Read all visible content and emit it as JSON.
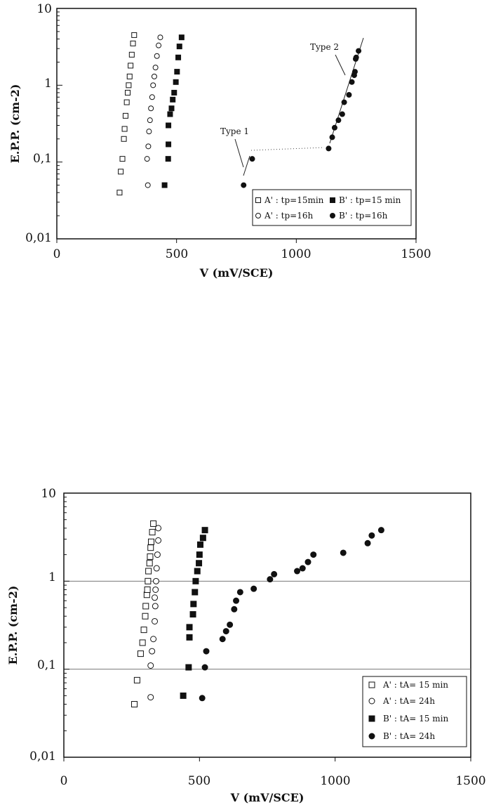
{
  "chart_data": [
    {
      "type": "scatter",
      "title": "",
      "xlabel": "V (mV/SCE)",
      "ylabel": "E.P.P. (cm-2)",
      "xlim": [
        0,
        1500
      ],
      "ylim": [
        0.01,
        10
      ],
      "yscale": "log",
      "xticks": [
        "0",
        "500",
        "1000",
        "1500"
      ],
      "yticks": [
        "0,01",
        "0,1",
        "1",
        "10"
      ],
      "grid": false,
      "legend_position": "bottom-right",
      "series": [
        {
          "name": "A' : tp=15min",
          "marker": "open-square",
          "x": [
            262,
            267,
            274,
            280,
            283,
            287,
            292,
            296,
            300,
            304,
            308,
            313,
            318,
            323
          ],
          "y": [
            0.04,
            0.075,
            0.11,
            0.2,
            0.27,
            0.4,
            0.6,
            0.8,
            1.0,
            1.3,
            1.8,
            2.5,
            3.5,
            4.5
          ]
        },
        {
          "name": "A' : tp=16h",
          "marker": "open-circle",
          "x": [
            380,
            377,
            382,
            385,
            389,
            393,
            398,
            402,
            407,
            412,
            418,
            425,
            432
          ],
          "y": [
            0.05,
            0.11,
            0.16,
            0.25,
            0.35,
            0.5,
            0.7,
            1.0,
            1.3,
            1.7,
            2.4,
            3.3,
            4.2
          ]
        },
        {
          "name": "B' : tp=15 min",
          "marker": "filled-square",
          "x": [
            450,
            465,
            466,
            466,
            473,
            479,
            484,
            490,
            497,
            502,
            507,
            512,
            521
          ],
          "y": [
            0.05,
            0.11,
            0.17,
            0.3,
            0.42,
            0.5,
            0.65,
            0.8,
            1.1,
            1.5,
            2.3,
            3.2,
            4.2
          ]
        },
        {
          "name": "B' : tp=16h",
          "marker": "filled-circle",
          "x": [
            780,
            816,
            1135,
            1150,
            1160,
            1176,
            1192,
            1200,
            1220,
            1232,
            1242,
            1245,
            1248,
            1250,
            1260
          ],
          "y": [
            0.05,
            0.11,
            0.15,
            0.21,
            0.28,
            0.35,
            0.42,
            0.6,
            0.75,
            1.1,
            1.35,
            1.5,
            2.2,
            2.3,
            2.8
          ]
        }
      ],
      "annotations": [
        {
          "text": "Type 1",
          "x": 745,
          "y": 0.17
        },
        {
          "text": "Type 2",
          "x": 1130,
          "y": 2.8
        }
      ]
    },
    {
      "type": "scatter",
      "title": "",
      "xlabel": "V (mV/SCE)",
      "ylabel": "E.P.P. (cm-2)",
      "xlim": [
        0,
        1500
      ],
      "ylim": [
        0.01,
        10
      ],
      "yscale": "log",
      "xticks": [
        "0",
        "500",
        "1000",
        "1500"
      ],
      "yticks": [
        "0,01",
        "0,1",
        "1",
        "10"
      ],
      "grid": true,
      "legend_position": "bottom-right",
      "series": [
        {
          "name": "A' : tA= 15 min",
          "marker": "open-square",
          "x": [
            260,
            270,
            283,
            290,
            295,
            300,
            302,
            306,
            308,
            310,
            312,
            316,
            318,
            320,
            322,
            326,
            330
          ],
          "y": [
            0.04,
            0.075,
            0.15,
            0.2,
            0.28,
            0.4,
            0.52,
            0.7,
            0.8,
            1.0,
            1.3,
            1.6,
            1.9,
            2.4,
            2.8,
            3.6,
            4.5
          ]
        },
        {
          "name": "A' : tA= 24h",
          "marker": "open-circle",
          "x": [
            320,
            320,
            325,
            330,
            335,
            337,
            335,
            338,
            340,
            342,
            345,
            348,
            348
          ],
          "y": [
            0.048,
            0.11,
            0.16,
            0.22,
            0.35,
            0.52,
            0.65,
            0.8,
            1.0,
            1.4,
            2.0,
            2.9,
            4.0
          ]
        },
        {
          "name": "B' : tA= 15 min",
          "marker": "filled-square",
          "x": [
            440,
            460,
            463,
            463,
            476,
            478,
            483,
            486,
            492,
            498,
            500,
            503,
            513,
            520
          ],
          "y": [
            0.05,
            0.105,
            0.23,
            0.3,
            0.42,
            0.55,
            0.75,
            1.0,
            1.3,
            1.6,
            2.0,
            2.6,
            3.1,
            3.8
          ]
        },
        {
          "name": "B' : tA= 24h",
          "marker": "filled-circle",
          "x": [
            510,
            520,
            525,
            585,
            598,
            612,
            628,
            635,
            650,
            700,
            760,
            775,
            860,
            880,
            900,
            920,
            1030,
            1120,
            1135,
            1170
          ],
          "y": [
            0.047,
            0.105,
            0.16,
            0.22,
            0.27,
            0.32,
            0.48,
            0.6,
            0.75,
            0.82,
            1.05,
            1.2,
            1.3,
            1.4,
            1.65,
            2.0,
            2.1,
            2.7,
            3.3,
            3.8
          ]
        }
      ]
    }
  ],
  "colors": {
    "ink": "#111111",
    "grid": "#777777",
    "background": "#ffffff"
  }
}
